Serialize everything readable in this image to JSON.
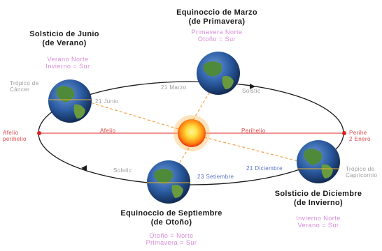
{
  "equinox_march": {
    "title_line1": "Equinoccio de Marzo",
    "title_line2": "(de Primavera)",
    "sub_line1": "Primavera Norte",
    "sub_line2": "Otoño = Sur",
    "left_note": "21 Marzo",
    "right_note": "Solstic"
  },
  "solstice_june": {
    "title_line1": "Solsticio de Junio",
    "title_line2": "(de Verano)",
    "sub_line1": "Verano Norte",
    "sub_line2": "Invierno = Sur",
    "tropic_line1": "Trópico de",
    "tropic_line2": "Cáncer",
    "date_note": "21 Junio"
  },
  "solstice_december": {
    "title_line1": "Solsticio de Diciembre",
    "title_line2": "(de Invierno)",
    "sub_line1": "Invierno Norte",
    "sub_line2": "Verano = Sur",
    "tropic_line1": "Trópico de",
    "tropic_line2": "Capricornio",
    "date_note": "21 Diciembre"
  },
  "equinox_september": {
    "title_line1": "Equinoccio de Septiembre",
    "title_line2": "(de Otoño)",
    "sub_line1": "Otoño = Norte",
    "sub_line2": "Primavera = Sur",
    "left_note": "Solstic",
    "right_note": "23 Setiembre"
  },
  "axis": {
    "left_line1": "Afelio",
    "left_line2": "perihelio",
    "mid_left": "Afelio",
    "mid_right": "Perihelio",
    "right_line1": "Perihe",
    "right_line2": "2 Enero"
  },
  "colors": {
    "orbit": "#1a1a1a",
    "apsis_line": "#e85050",
    "sun_glow": "#ff7a00",
    "sun_core": "#ffe040",
    "ocean": "#2a63a8",
    "land": "#4f8a3a",
    "pink_text": "#d88ad8",
    "blue_text": "#5a72c8",
    "dashed": "#f0a040"
  }
}
